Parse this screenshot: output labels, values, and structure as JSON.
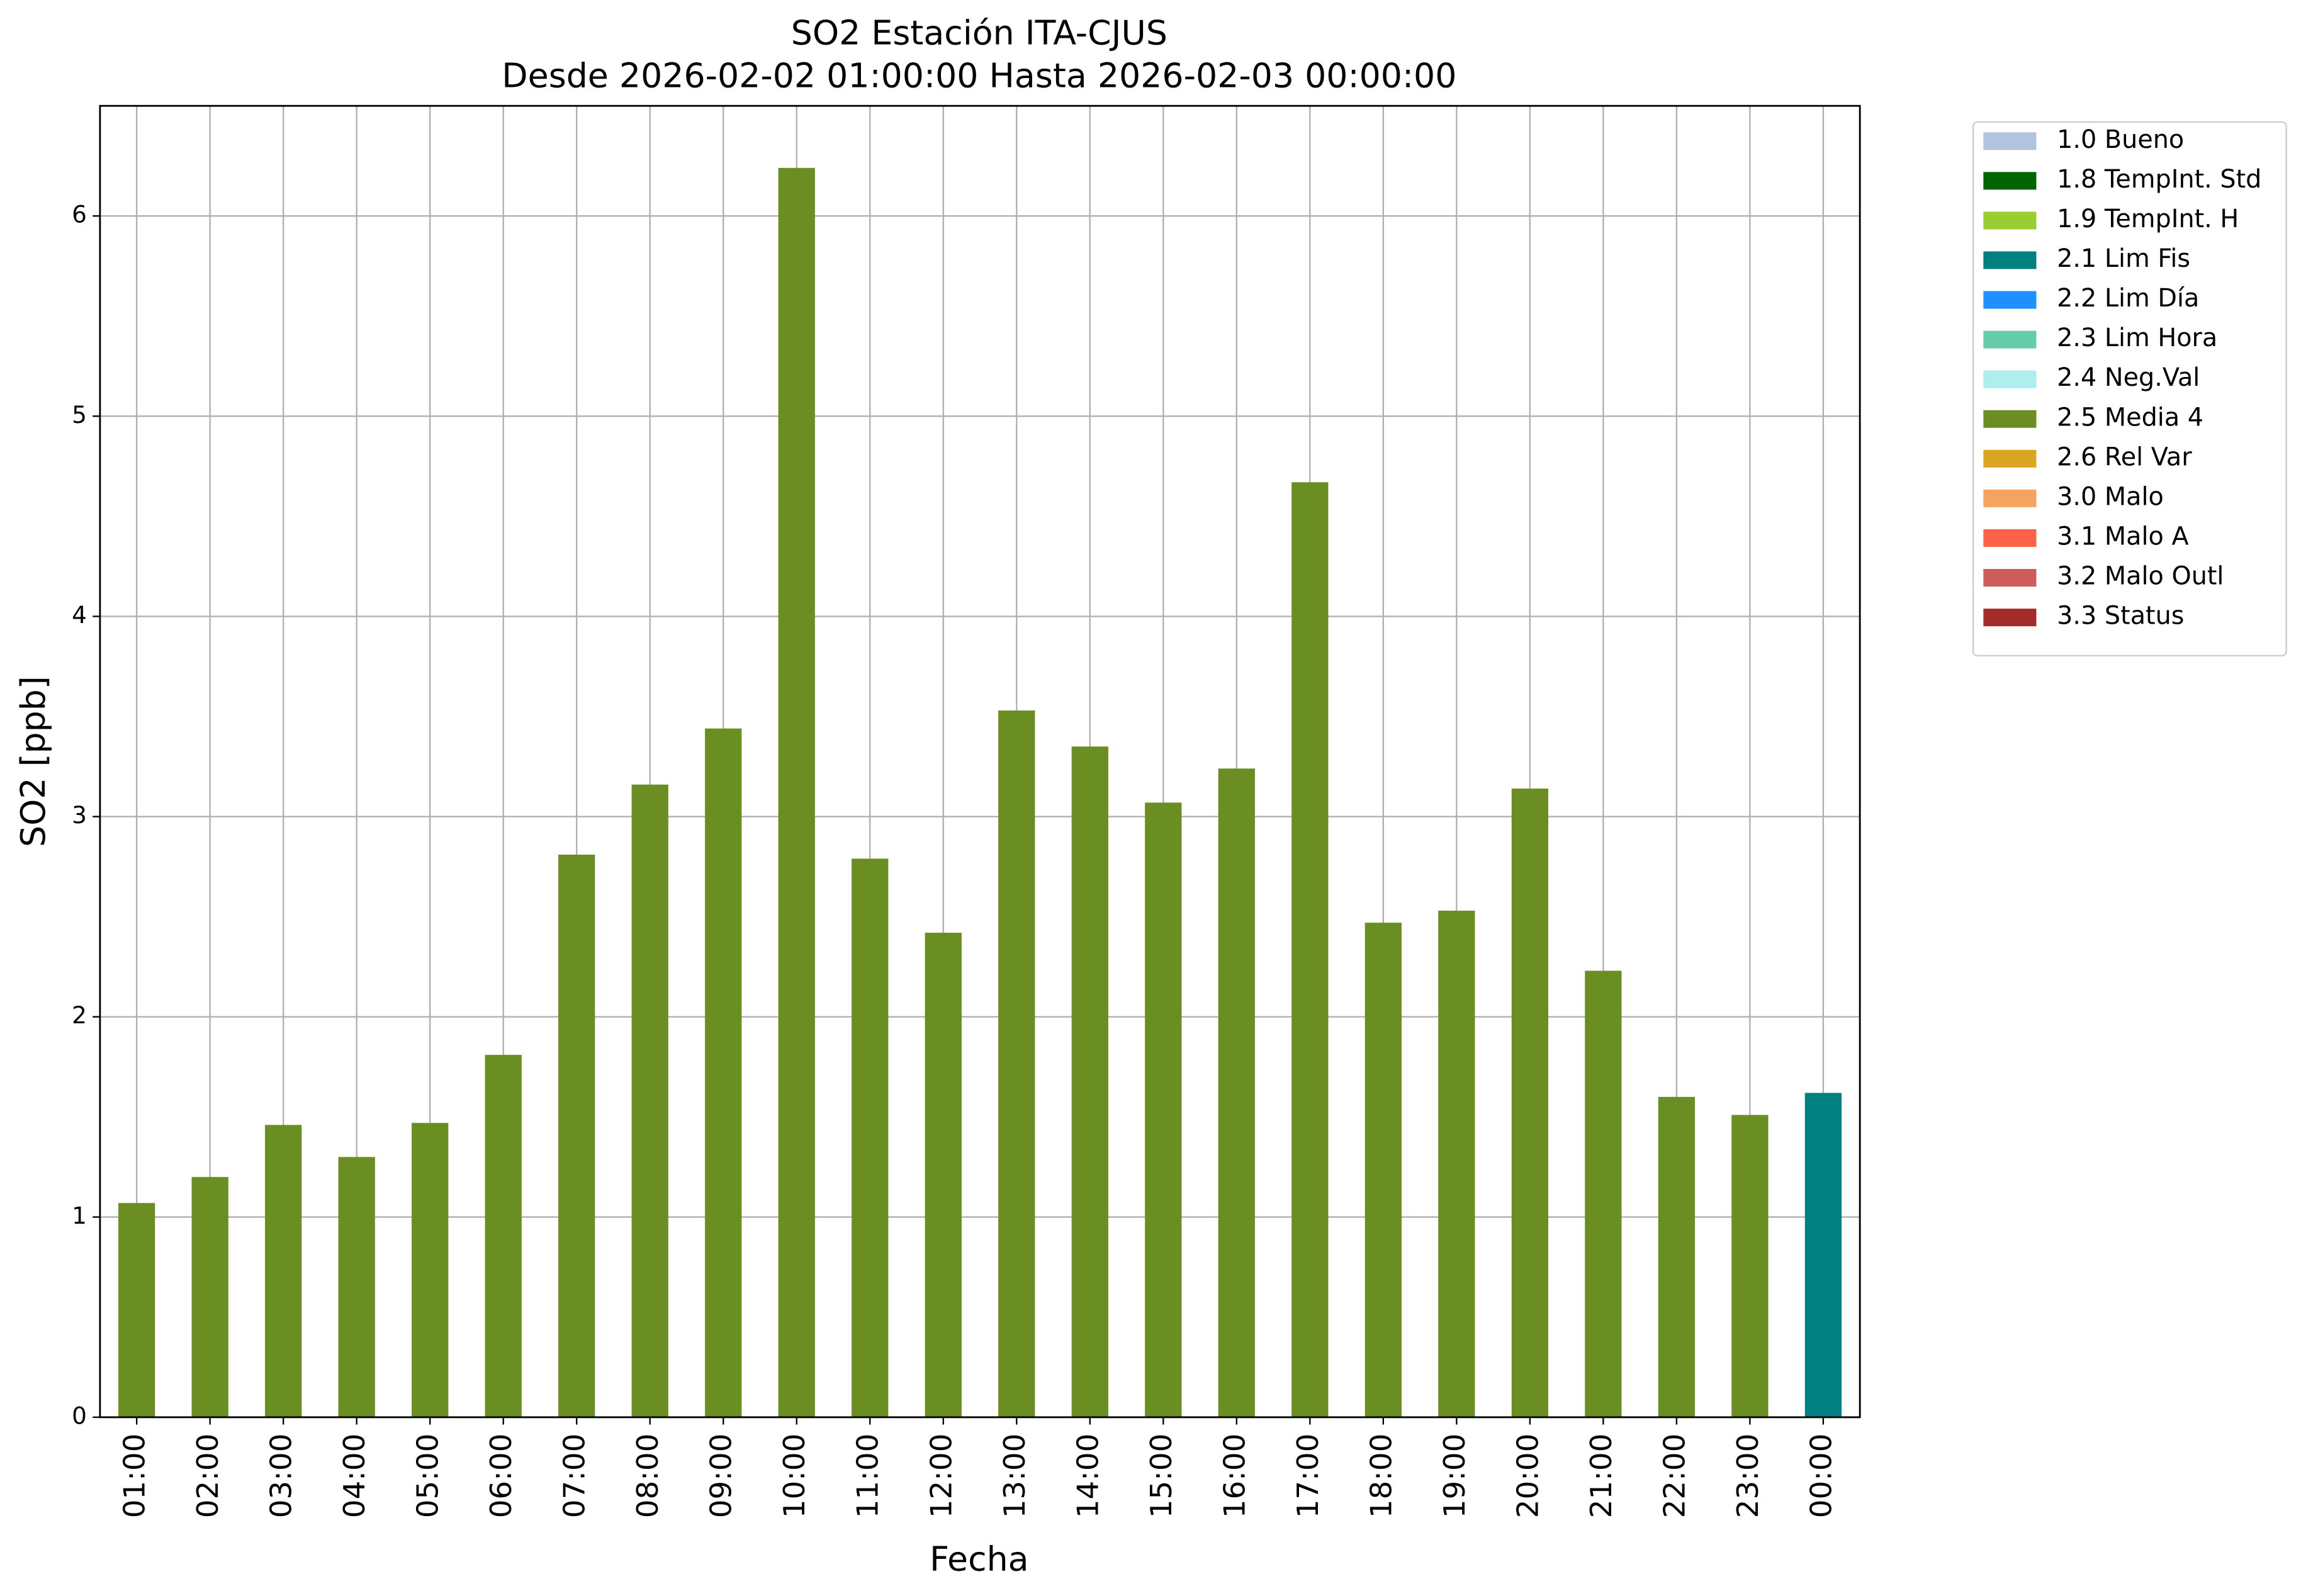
{
  "chart_data": {
    "type": "bar",
    "stacked": true,
    "title": "SO2 Estación ITA-CJUS",
    "subtitle": "Desde 2026-02-02 01:00:00 Hasta 2026-02-03 00:00:00",
    "x_label": "Fecha",
    "y_label": "SO2 [ppb]",
    "categories": [
      "01:00",
      "02:00",
      "03:00",
      "04:00",
      "05:00",
      "06:00",
      "07:00",
      "08:00",
      "09:00",
      "10:00",
      "11:00",
      "12:00",
      "13:00",
      "14:00",
      "15:00",
      "16:00",
      "17:00",
      "18:00",
      "19:00",
      "20:00",
      "21:00",
      "22:00",
      "23:00",
      "00:00"
    ],
    "ylim": [
      0,
      6.55
    ],
    "yticks": [
      0,
      1,
      2,
      3,
      4,
      5,
      6
    ],
    "grid": true,
    "legend": "outside-right",
    "series": [
      {
        "name": "1.0 Bueno",
        "color": "#b0c4de",
        "values": [
          null,
          null,
          null,
          null,
          null,
          null,
          null,
          null,
          null,
          null,
          null,
          null,
          null,
          null,
          null,
          null,
          null,
          null,
          null,
          null,
          null,
          null,
          null,
          null
        ]
      },
      {
        "name": "1.8 TempInt. Std",
        "color": "#006400",
        "values": [
          null,
          null,
          null,
          null,
          null,
          null,
          null,
          null,
          null,
          null,
          null,
          null,
          null,
          null,
          null,
          null,
          null,
          null,
          null,
          null,
          null,
          null,
          null,
          null
        ]
      },
      {
        "name": "1.9 TempInt. H",
        "color": "#9acd32",
        "values": [
          null,
          null,
          null,
          null,
          null,
          null,
          null,
          null,
          null,
          null,
          null,
          null,
          null,
          null,
          null,
          null,
          null,
          null,
          null,
          null,
          null,
          null,
          null,
          null
        ]
      },
      {
        "name": "2.1 Lim Fis",
        "color": "#008080",
        "values": [
          null,
          null,
          null,
          null,
          null,
          null,
          null,
          null,
          null,
          null,
          null,
          null,
          null,
          null,
          null,
          null,
          null,
          null,
          null,
          null,
          null,
          null,
          null,
          1.62
        ]
      },
      {
        "name": "2.2 Lim Día",
        "color": "#1e90ff",
        "values": [
          null,
          null,
          null,
          null,
          null,
          null,
          null,
          null,
          null,
          null,
          null,
          null,
          null,
          null,
          null,
          null,
          null,
          null,
          null,
          null,
          null,
          null,
          null,
          null
        ]
      },
      {
        "name": "2.3 Lim Hora",
        "color": "#66cdaa",
        "values": [
          null,
          null,
          null,
          null,
          null,
          null,
          null,
          null,
          null,
          null,
          null,
          null,
          null,
          null,
          null,
          null,
          null,
          null,
          null,
          null,
          null,
          null,
          null,
          null
        ]
      },
      {
        "name": "2.4 Neg.Val",
        "color": "#afeeee",
        "values": [
          null,
          null,
          null,
          null,
          null,
          null,
          null,
          null,
          null,
          null,
          null,
          null,
          null,
          null,
          null,
          null,
          null,
          null,
          null,
          null,
          null,
          null,
          null,
          null
        ]
      },
      {
        "name": "2.5 Media 4",
        "color": "#6b8e23",
        "values": [
          1.07,
          1.2,
          1.46,
          1.3,
          1.47,
          1.81,
          2.81,
          3.16,
          3.44,
          6.24,
          2.79,
          2.42,
          3.53,
          3.35,
          3.07,
          3.24,
          4.67,
          2.47,
          2.53,
          3.14,
          2.23,
          1.6,
          1.51,
          null
        ]
      },
      {
        "name": "2.6 Rel Var",
        "color": "#daa520",
        "values": [
          null,
          null,
          null,
          null,
          null,
          null,
          null,
          null,
          null,
          null,
          null,
          null,
          null,
          null,
          null,
          null,
          null,
          null,
          null,
          null,
          null,
          null,
          null,
          null
        ]
      },
      {
        "name": "3.0 Malo",
        "color": "#f4a460",
        "values": [
          null,
          null,
          null,
          null,
          null,
          null,
          null,
          null,
          null,
          null,
          null,
          null,
          null,
          null,
          null,
          null,
          null,
          null,
          null,
          null,
          null,
          null,
          null,
          null
        ]
      },
      {
        "name": "3.1 Malo A",
        "color": "#ff6347",
        "values": [
          null,
          null,
          null,
          null,
          null,
          null,
          null,
          null,
          null,
          null,
          null,
          null,
          null,
          null,
          null,
          null,
          null,
          null,
          null,
          null,
          null,
          null,
          null,
          null
        ]
      },
      {
        "name": "3.2 Malo Outl",
        "color": "#cd5c5c",
        "values": [
          null,
          null,
          null,
          null,
          null,
          null,
          null,
          null,
          null,
          null,
          null,
          null,
          null,
          null,
          null,
          null,
          null,
          null,
          null,
          null,
          null,
          null,
          null,
          null
        ]
      },
      {
        "name": "3.3 Status",
        "color": "#a52a2a",
        "values": [
          null,
          null,
          null,
          null,
          null,
          null,
          null,
          null,
          null,
          null,
          null,
          null,
          null,
          null,
          null,
          null,
          null,
          null,
          null,
          null,
          null,
          null,
          null,
          null
        ]
      }
    ]
  }
}
